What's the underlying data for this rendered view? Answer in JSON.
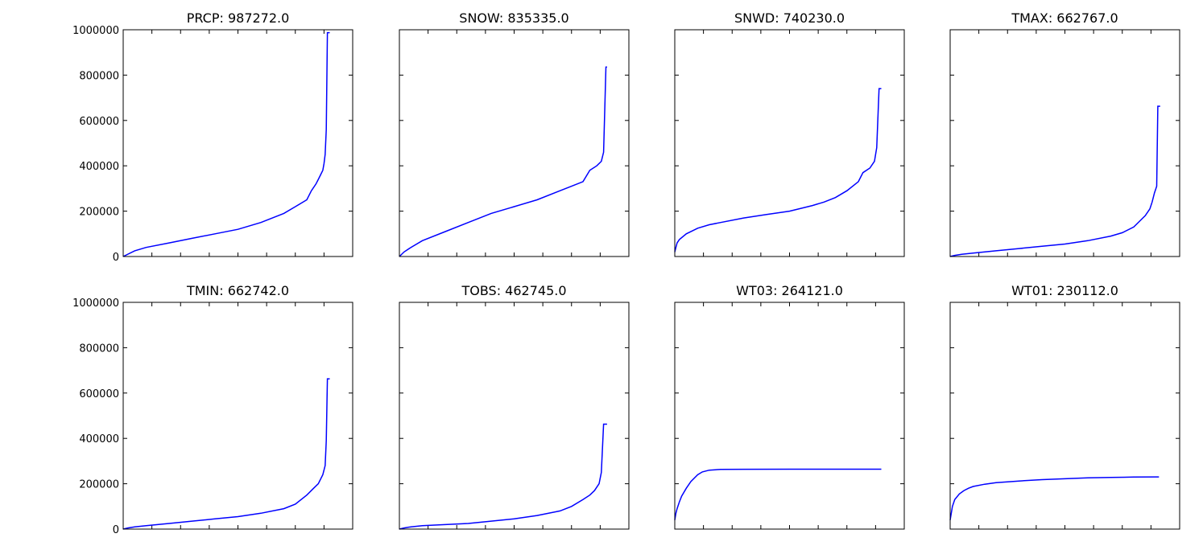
{
  "chart_data": [
    {
      "type": "line",
      "title": "PRCP:  987272.0",
      "ylim": [
        0,
        1000000
      ],
      "yticks": [
        "0",
        "200000",
        "400000",
        "600000",
        "800000",
        "1000000"
      ],
      "show_ytick_labels": true,
      "line_color": "#0000ff",
      "x": [
        0,
        0.05,
        0.1,
        0.2,
        0.3,
        0.4,
        0.5,
        0.6,
        0.7,
        0.75,
        0.8,
        0.82,
        0.84,
        0.85,
        0.86,
        0.87,
        0.875,
        0.88,
        0.885,
        0.89,
        0.895,
        0.9
      ],
      "values": [
        0,
        25000,
        40000,
        60000,
        80000,
        100000,
        120000,
        150000,
        190000,
        220000,
        250000,
        290000,
        320000,
        340000,
        360000,
        380000,
        410000,
        450000,
        560000,
        987272,
        987272,
        987272
      ]
    },
    {
      "type": "line",
      "title": "SNOW:  835335.0",
      "ylim": [
        0,
        1000000
      ],
      "yticks": [
        "0",
        "200000",
        "400000",
        "600000",
        "800000",
        "1000000"
      ],
      "show_ytick_labels": false,
      "line_color": "#0000ff",
      "x": [
        0,
        0.02,
        0.05,
        0.1,
        0.2,
        0.3,
        0.4,
        0.5,
        0.6,
        0.7,
        0.75,
        0.8,
        0.83,
        0.86,
        0.88,
        0.89,
        0.9,
        0.905
      ],
      "values": [
        0,
        20000,
        40000,
        70000,
        110000,
        150000,
        190000,
        220000,
        250000,
        290000,
        310000,
        330000,
        380000,
        400000,
        420000,
        460000,
        835335,
        835335
      ]
    },
    {
      "type": "line",
      "title": "SNWD:  740230.0",
      "ylim": [
        0,
        1000000
      ],
      "yticks": [
        "0",
        "200000",
        "400000",
        "600000",
        "800000",
        "1000000"
      ],
      "show_ytick_labels": false,
      "line_color": "#0000ff",
      "x": [
        0,
        0.005,
        0.01,
        0.02,
        0.05,
        0.1,
        0.15,
        0.2,
        0.3,
        0.4,
        0.5,
        0.6,
        0.65,
        0.7,
        0.75,
        0.8,
        0.82,
        0.85,
        0.87,
        0.88,
        0.89,
        0.9
      ],
      "values": [
        20000,
        40000,
        60000,
        75000,
        100000,
        125000,
        140000,
        150000,
        170000,
        185000,
        200000,
        225000,
        240000,
        260000,
        290000,
        330000,
        370000,
        390000,
        420000,
        480000,
        740230,
        740230
      ]
    },
    {
      "type": "line",
      "title": "TMAX:  662767.0",
      "ylim": [
        0,
        1000000
      ],
      "yticks": [
        "0",
        "200000",
        "400000",
        "600000",
        "800000",
        "1000000"
      ],
      "show_ytick_labels": false,
      "line_color": "#0000ff",
      "x": [
        0,
        0.02,
        0.05,
        0.1,
        0.2,
        0.3,
        0.4,
        0.5,
        0.6,
        0.7,
        0.75,
        0.8,
        0.83,
        0.85,
        0.87,
        0.88,
        0.89,
        0.9,
        0.905,
        0.91,
        0.915
      ],
      "values": [
        0,
        5000,
        10000,
        15000,
        25000,
        35000,
        45000,
        55000,
        70000,
        90000,
        105000,
        130000,
        160000,
        180000,
        210000,
        240000,
        280000,
        310000,
        662767,
        662767,
        662767
      ]
    },
    {
      "type": "line",
      "title": "TMIN:  662742.0",
      "ylim": [
        0,
        1000000
      ],
      "yticks": [
        "0",
        "200000",
        "400000",
        "600000",
        "800000",
        "1000000"
      ],
      "show_ytick_labels": true,
      "line_color": "#0000ff",
      "x": [
        0,
        0.02,
        0.05,
        0.1,
        0.2,
        0.3,
        0.4,
        0.5,
        0.6,
        0.7,
        0.75,
        0.8,
        0.83,
        0.85,
        0.87,
        0.88,
        0.885,
        0.89,
        0.895,
        0.9
      ],
      "values": [
        0,
        5000,
        10000,
        15000,
        25000,
        35000,
        45000,
        55000,
        70000,
        90000,
        110000,
        150000,
        180000,
        200000,
        240000,
        280000,
        390000,
        662742,
        662742,
        662742
      ]
    },
    {
      "type": "line",
      "title": "TOBS:  462745.0",
      "ylim": [
        0,
        1000000
      ],
      "yticks": [
        "0",
        "200000",
        "400000",
        "600000",
        "800000",
        "1000000"
      ],
      "show_ytick_labels": false,
      "line_color": "#0000ff",
      "x": [
        0,
        0.02,
        0.05,
        0.1,
        0.2,
        0.3,
        0.4,
        0.5,
        0.6,
        0.7,
        0.75,
        0.8,
        0.83,
        0.85,
        0.87,
        0.88,
        0.89,
        0.9,
        0.905
      ],
      "values": [
        0,
        5000,
        10000,
        15000,
        20000,
        25000,
        35000,
        45000,
        60000,
        80000,
        100000,
        130000,
        150000,
        170000,
        200000,
        250000,
        462745,
        462745,
        462745
      ]
    },
    {
      "type": "line",
      "title": "WT03:  264121.0",
      "ylim": [
        0,
        1000000
      ],
      "yticks": [
        "0",
        "200000",
        "400000",
        "600000",
        "800000",
        "1000000"
      ],
      "show_ytick_labels": false,
      "line_color": "#0000ff",
      "x": [
        0,
        0.005,
        0.01,
        0.02,
        0.03,
        0.05,
        0.07,
        0.1,
        0.12,
        0.15,
        0.2,
        0.3,
        0.5,
        0.7,
        0.9
      ],
      "values": [
        40000,
        70000,
        90000,
        120000,
        145000,
        180000,
        210000,
        240000,
        252000,
        260000,
        263000,
        264000,
        264121,
        264121,
        264121
      ]
    },
    {
      "type": "line",
      "title": "WT01:  230112.0",
      "ylim": [
        0,
        1000000
      ],
      "yticks": [
        "0",
        "200000",
        "400000",
        "600000",
        "800000",
        "1000000"
      ],
      "show_ytick_labels": false,
      "line_color": "#0000ff",
      "x": [
        0,
        0.005,
        0.01,
        0.02,
        0.04,
        0.06,
        0.08,
        0.1,
        0.15,
        0.2,
        0.3,
        0.4,
        0.5,
        0.6,
        0.7,
        0.8,
        0.9,
        0.91
      ],
      "values": [
        40000,
        70000,
        100000,
        130000,
        155000,
        170000,
        180000,
        188000,
        198000,
        205000,
        212000,
        218000,
        222000,
        226000,
        228000,
        229500,
        230112,
        230112
      ]
    }
  ]
}
